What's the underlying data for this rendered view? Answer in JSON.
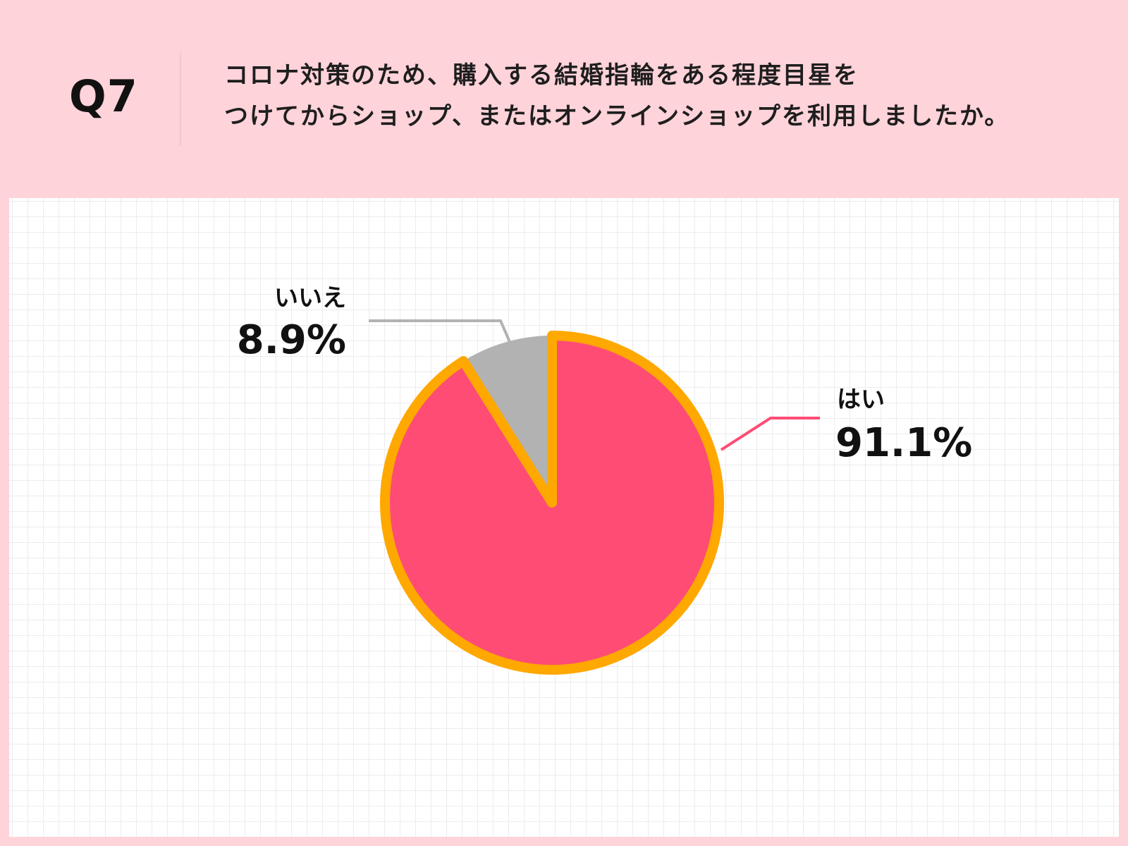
{
  "header": {
    "q_label": "Q7",
    "question_lines": [
      "コロナ対策のため、購入する結婚指輪をある程度目星を",
      "つけてからショップ、またはオンラインショップを利用しましたか。"
    ]
  },
  "colors": {
    "background": "#ffd3da",
    "panel": "#ffffff",
    "yes_slice": "#ff4c74",
    "no_slice": "#b2b2b2",
    "pie_outline": "#ffa800",
    "yes_leader": "#ff4c74",
    "no_leader": "#b2b2b2"
  },
  "chart_data": {
    "type": "pie",
    "title": "",
    "slices": [
      {
        "label": "はい",
        "value": 91.1,
        "display": "91.1%",
        "color": "#ff4c74"
      },
      {
        "label": "いいえ",
        "value": 8.9,
        "display": "8.9%",
        "color": "#b2b2b2"
      }
    ],
    "legend": "none",
    "highlighted_slice": "はい"
  }
}
